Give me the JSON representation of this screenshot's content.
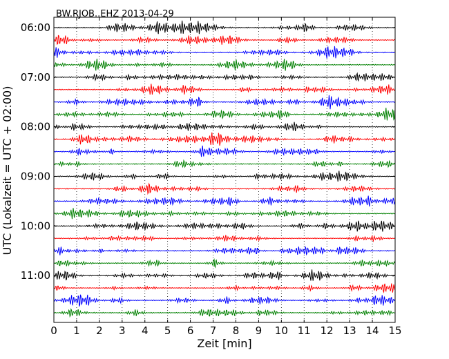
{
  "chart_data": {
    "type": "line",
    "title": "BW.RJOB..EHZ 2013-04-29",
    "xlabel": "Zeit  [min]",
    "ylabel": "UTC (Lokalzeit = UTC + 02:00)",
    "xlim": [
      0,
      15
    ],
    "x_ticks": [
      "0",
      "1",
      "2",
      "3",
      "4",
      "5",
      "6",
      "7",
      "8",
      "9",
      "10",
      "11",
      "12",
      "13",
      "14",
      "15"
    ],
    "y_ticks": [
      "06:00",
      "07:00",
      "08:00",
      "09:00",
      "10:00",
      "11:00"
    ],
    "trace_interval_minutes": 15,
    "trace_count": 24,
    "trace_colors": [
      "#000000",
      "#ff0000",
      "#0000ff",
      "#008000"
    ],
    "grid": "vertical dotted lines at every minute"
  }
}
